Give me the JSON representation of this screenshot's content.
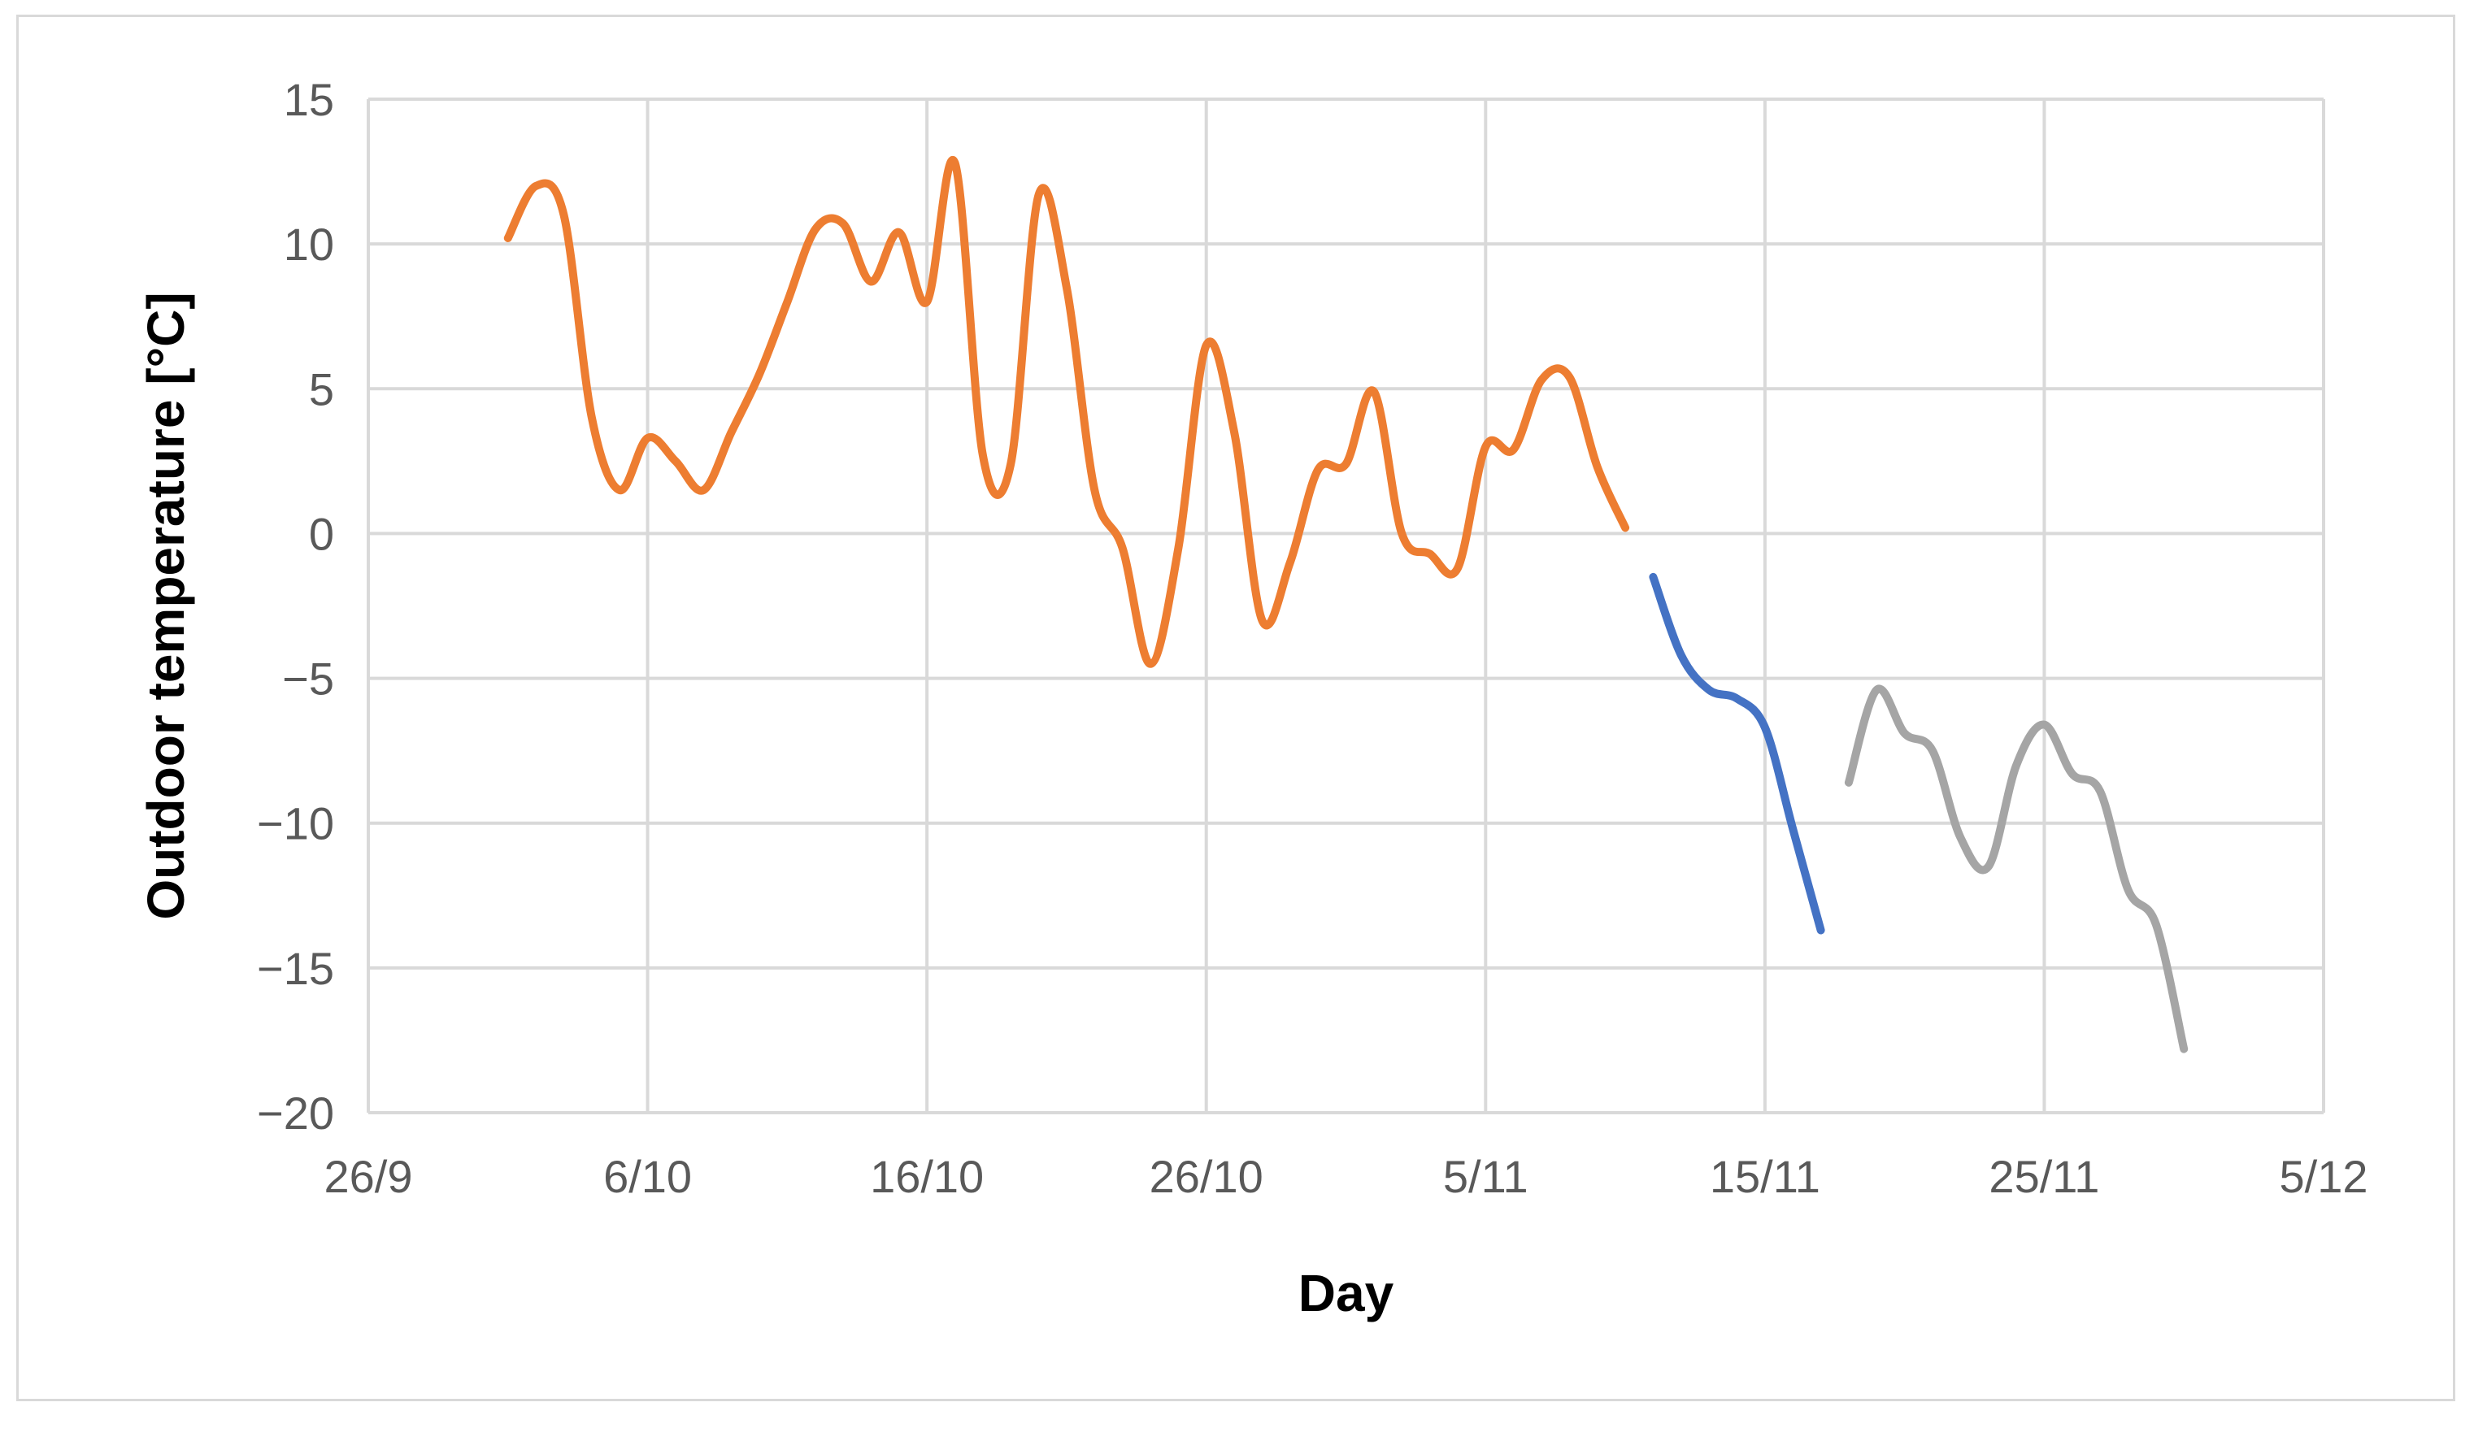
{
  "chart_data": {
    "type": "line",
    "title": "",
    "xlabel": "Day",
    "ylabel": "Outdoor temperature [°C]",
    "x_type": "date",
    "xlim": [
      "2023-09-26",
      "2023-12-05"
    ],
    "ylim": [
      -20,
      15
    ],
    "x_ticks": [
      {
        "date": "2023-09-26",
        "label": "26/9"
      },
      {
        "date": "2023-10-06",
        "label": "6/10"
      },
      {
        "date": "2023-10-16",
        "label": "16/10"
      },
      {
        "date": "2023-10-26",
        "label": "26/10"
      },
      {
        "date": "2023-11-05",
        "label": "5/11"
      },
      {
        "date": "2023-11-15",
        "label": "15/11"
      },
      {
        "date": "2023-11-25",
        "label": "25/11"
      },
      {
        "date": "2023-12-05",
        "label": "5/12"
      }
    ],
    "y_ticks": [
      {
        "value": 15,
        "label": "15"
      },
      {
        "value": 10,
        "label": "10"
      },
      {
        "value": 5,
        "label": "5"
      },
      {
        "value": 0,
        "label": "0"
      },
      {
        "value": -5,
        "label": "−5"
      },
      {
        "value": -10,
        "label": "−10"
      },
      {
        "value": -15,
        "label": "−15"
      },
      {
        "value": -20,
        "label": "−20"
      }
    ],
    "grid": true,
    "legend": "none",
    "series": [
      {
        "color": "#ed7d31",
        "points": [
          [
            "2023-10-01",
            10.2
          ],
          [
            "2023-10-02",
            12.0
          ],
          [
            "2023-10-03",
            11.0
          ],
          [
            "2023-10-04",
            4.0
          ],
          [
            "2023-10-05",
            1.5
          ],
          [
            "2023-10-06",
            3.3
          ],
          [
            "2023-10-07",
            2.5
          ],
          [
            "2023-10-08",
            1.5
          ],
          [
            "2023-10-09",
            3.5
          ],
          [
            "2023-10-10",
            5.5
          ],
          [
            "2023-10-11",
            8.0
          ],
          [
            "2023-10-12",
            10.5
          ],
          [
            "2023-10-13",
            10.7
          ],
          [
            "2023-10-14",
            8.7
          ],
          [
            "2023-10-15",
            10.4
          ],
          [
            "2023-10-16",
            8.0
          ],
          [
            "2023-10-17",
            12.8
          ],
          [
            "2023-10-18",
            2.7
          ],
          [
            "2023-10-19",
            2.4
          ],
          [
            "2023-10-20",
            11.7
          ],
          [
            "2023-10-21",
            8.5
          ],
          [
            "2023-10-22",
            1.5
          ],
          [
            "2023-10-23",
            -0.5
          ],
          [
            "2023-10-24",
            -4.5
          ],
          [
            "2023-10-25",
            -0.5
          ],
          [
            "2023-10-26",
            6.5
          ],
          [
            "2023-10-27",
            3.5
          ],
          [
            "2023-10-28",
            -3.0
          ],
          [
            "2023-10-29",
            -1.0
          ],
          [
            "2023-10-30",
            2.2
          ],
          [
            "2023-10-31",
            2.4
          ],
          [
            "2023-11-01",
            4.9
          ],
          [
            "2023-11-02",
            0.0
          ],
          [
            "2023-11-03",
            -0.7
          ],
          [
            "2023-11-04",
            -1.2
          ],
          [
            "2023-11-05",
            3.0
          ],
          [
            "2023-11-06",
            2.9
          ],
          [
            "2023-11-07",
            5.3
          ],
          [
            "2023-11-08",
            5.4
          ],
          [
            "2023-11-09",
            2.3
          ],
          [
            "2023-11-10",
            0.2
          ]
        ]
      },
      {
        "color": "#4472c4",
        "points": [
          [
            "2023-11-11",
            -1.5
          ],
          [
            "2023-11-12",
            -4.2
          ],
          [
            "2023-11-13",
            -5.4
          ],
          [
            "2023-11-14",
            -5.7
          ],
          [
            "2023-11-15",
            -6.7
          ],
          [
            "2023-11-16",
            -10.2
          ],
          [
            "2023-11-17",
            -13.7
          ]
        ]
      },
      {
        "color": "#a5a5a5",
        "points": [
          [
            "2023-11-18",
            -8.6
          ],
          [
            "2023-11-19",
            -5.4
          ],
          [
            "2023-11-20",
            -6.9
          ],
          [
            "2023-11-21",
            -7.5
          ],
          [
            "2023-11-22",
            -10.5
          ],
          [
            "2023-11-23",
            -11.5
          ],
          [
            "2023-11-24",
            -8.0
          ],
          [
            "2023-11-25",
            -6.6
          ],
          [
            "2023-11-26",
            -8.3
          ],
          [
            "2023-11-27",
            -8.9
          ],
          [
            "2023-11-28",
            -12.3
          ],
          [
            "2023-11-29",
            -13.5
          ],
          [
            "2023-11-30",
            -17.8
          ]
        ]
      }
    ]
  }
}
